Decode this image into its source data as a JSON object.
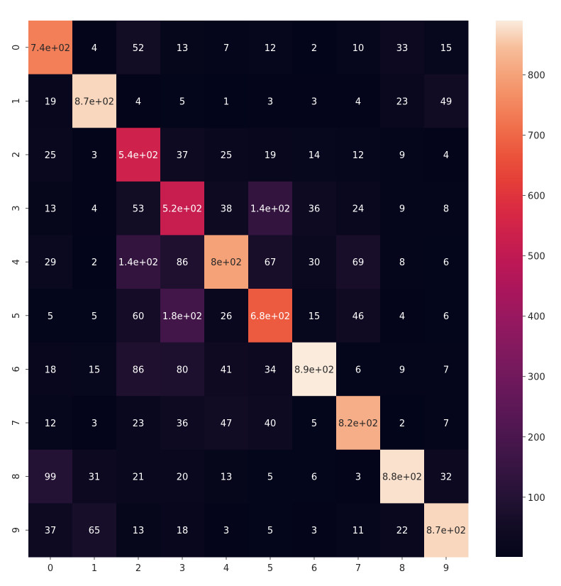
{
  "chart_data": {
    "type": "heatmap",
    "title": "",
    "xlabel": "",
    "ylabel": "",
    "x_categories": [
      "0",
      "1",
      "2",
      "3",
      "4",
      "5",
      "6",
      "7",
      "8",
      "9"
    ],
    "y_categories": [
      "0",
      "1",
      "2",
      "3",
      "4",
      "5",
      "6",
      "7",
      "8",
      "9"
    ],
    "values": [
      [
        740,
        4,
        52,
        13,
        7,
        12,
        2,
        10,
        33,
        15
      ],
      [
        19,
        870,
        4,
        5,
        1,
        3,
        3,
        4,
        23,
        49
      ],
      [
        25,
        3,
        540,
        37,
        25,
        19,
        14,
        12,
        9,
        4
      ],
      [
        13,
        4,
        53,
        520,
        38,
        140,
        36,
        24,
        9,
        8
      ],
      [
        29,
        2,
        140,
        86,
        800,
        67,
        30,
        69,
        8,
        6
      ],
      [
        5,
        5,
        60,
        180,
        26,
        680,
        15,
        46,
        4,
        6
      ],
      [
        18,
        15,
        86,
        80,
        41,
        34,
        890,
        6,
        9,
        7
      ],
      [
        12,
        3,
        23,
        36,
        47,
        40,
        5,
        820,
        2,
        7
      ],
      [
        99,
        31,
        21,
        20,
        13,
        5,
        6,
        3,
        880,
        32
      ],
      [
        37,
        65,
        13,
        18,
        3,
        5,
        3,
        11,
        22,
        870
      ]
    ],
    "annotations": [
      [
        "7.4e+02",
        "4",
        "52",
        "13",
        "7",
        "12",
        "2",
        "10",
        "33",
        "15"
      ],
      [
        "19",
        "8.7e+02",
        "4",
        "5",
        "1",
        "3",
        "3",
        "4",
        "23",
        "49"
      ],
      [
        "25",
        "3",
        "5.4e+02",
        "37",
        "25",
        "19",
        "14",
        "12",
        "9",
        "4"
      ],
      [
        "13",
        "4",
        "53",
        "5.2e+02",
        "38",
        "1.4e+02",
        "36",
        "24",
        "9",
        "8"
      ],
      [
        "29",
        "2",
        "1.4e+02",
        "86",
        "8e+02",
        "67",
        "30",
        "69",
        "8",
        "6"
      ],
      [
        "5",
        "5",
        "60",
        "1.8e+02",
        "26",
        "6.8e+02",
        "15",
        "46",
        "4",
        "6"
      ],
      [
        "18",
        "15",
        "86",
        "80",
        "41",
        "34",
        "8.9e+02",
        "6",
        "9",
        "7"
      ],
      [
        "12",
        "3",
        "23",
        "36",
        "47",
        "40",
        "5",
        "8.2e+02",
        "2",
        "7"
      ],
      [
        "99",
        "31",
        "21",
        "20",
        "13",
        "5",
        "6",
        "3",
        "8.8e+02",
        "32"
      ],
      [
        "37",
        "65",
        "13",
        "18",
        "3",
        "5",
        "3",
        "11",
        "22",
        "8.7e+02"
      ]
    ],
    "colormap": "rocket",
    "colorbar": {
      "range": [
        1,
        890
      ],
      "ticks": [
        100,
        200,
        300,
        400,
        500,
        600,
        700,
        800
      ]
    },
    "grid": false,
    "legend": "colorbar-right"
  }
}
